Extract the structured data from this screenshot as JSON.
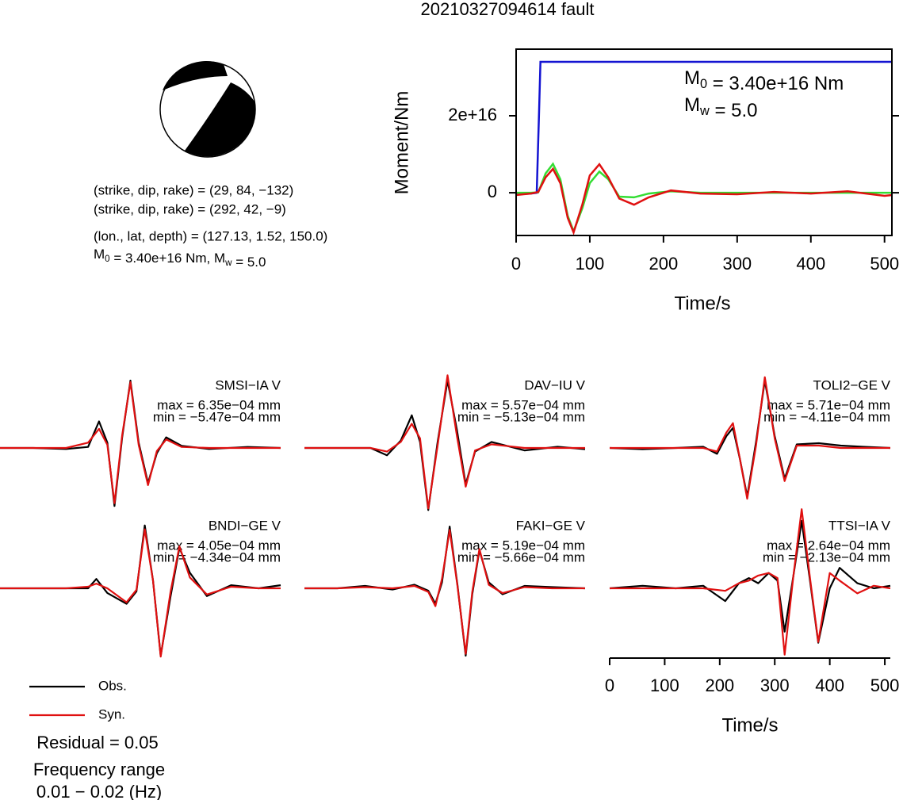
{
  "title": "20210327094614 fault",
  "mechanism": {
    "plane1": "(strike, dip, rake) = (29, 84, −132)",
    "plane2": "(strike, dip, rake) = (292, 42, −9)",
    "location": "(lon., lat, depth) = (127.13, 1.52, 150.0)",
    "moment": [
      {
        "text": "M"
      },
      {
        "text": "0",
        "sub": true
      },
      {
        "text": " = 3.40e+16 Nm, M"
      },
      {
        "text": "w",
        "sub": true
      },
      {
        "text": " = 5.0"
      }
    ]
  },
  "notes": {
    "residual": "Residual = 0.05",
    "frequency_label": "Frequency range",
    "frequency_range": "0.01 − 0.02 (Hz)"
  },
  "chart_data": [
    {
      "type": "line",
      "xlabel": "Time/s",
      "ylabel": "Moment/Nm",
      "xlim": [
        0,
        510
      ],
      "ylim": [
        -1.11e+16,
        3.73e+16
      ],
      "xticks": [
        0,
        100,
        200,
        300,
        400,
        500
      ],
      "yticks": [
        0,
        {
          "value": 2e+16,
          "label": "2e+16"
        }
      ],
      "annotation_lines": [
        [
          {
            "text": "M"
          },
          {
            "text": "0",
            "sub": true
          },
          {
            "text": " = 3.40e+16 Nm"
          }
        ],
        [
          {
            "text": "M"
          },
          {
            "text": "w",
            "sub": true
          },
          {
            "text": " = 5.0"
          }
        ]
      ],
      "series": [
        {
          "color": "#1414d2",
          "x": [
            0,
            20,
            28,
            31,
            33,
            510
          ],
          "values": [
            -400000000000000.0,
            -200000000000000.0,
            0,
            2e+16,
            3.4e+16,
            3.4e+16
          ]
        },
        {
          "color": "#33dd33",
          "x": [
            0,
            10,
            20,
            30,
            40,
            50,
            60,
            70,
            78,
            90,
            100,
            113,
            125,
            140,
            160,
            180,
            210,
            250,
            300,
            350,
            400,
            450,
            500,
            510
          ],
          "values": [
            0,
            0,
            0,
            100000000000000.0,
            5000000000000000.0,
            7500000000000000.0,
            3500000000000000.0,
            -6000000000000000.0,
            -1e+16,
            -4000000000000000.0,
            2500000000000000.0,
            5500000000000000.0,
            3500000000000000.0,
            -1000000000000000.0,
            -1200000000000000.0,
            -200000000000000.0,
            400000000000000.0,
            0,
            0,
            0,
            0,
            0,
            0,
            0
          ]
        },
        {
          "color": "#e01010",
          "x": [
            0,
            10,
            20,
            30,
            40,
            50,
            60,
            70,
            78,
            90,
            100,
            113,
            125,
            140,
            160,
            180,
            210,
            250,
            300,
            350,
            400,
            450,
            500,
            510
          ],
          "values": [
            -600000000000000.0,
            -400000000000000.0,
            -200000000000000.0,
            200000000000000.0,
            4000000000000000.0,
            6200000000000000.0,
            2500000000000000.0,
            -6500000000000000.0,
            -1.03e+16,
            -3000000000000000.0,
            4500000000000000.0,
            7400000000000000.0,
            4000000000000000.0,
            -1500000000000000.0,
            -3100000000000000.0,
            -1200000000000000.0,
            600000000000000.0,
            -200000000000000.0,
            -400000000000000.0,
            200000000000000.0,
            -200000000000000.0,
            400000000000000.0,
            -800000000000000.0,
            -600000000000000.0
          ]
        }
      ]
    },
    {
      "type": "waveforms",
      "xlabel": "Time/s",
      "xlim": [
        0,
        510
      ],
      "xticks": [
        0,
        100,
        200,
        300,
        400,
        500
      ],
      "series": [
        {
          "name": "Obs.",
          "color": "#000000"
        },
        {
          "name": "Syn.",
          "color": "#e01010"
        }
      ],
      "panels": [
        {
          "title": "SMSI−IA V",
          "max": {
            "value": 0.000635,
            "label": "max = 6.35e−04 mm"
          },
          "min": {
            "value": -0.000547,
            "label": "min = −5.47e−04 mm"
          },
          "x": [
            0,
            60,
            120,
            160,
            180,
            195,
            208,
            222,
            237,
            252,
            269,
            285,
            302,
            330,
            380,
            450,
            510
          ],
          "obs": [
            0,
            0,
            -1e-05,
            1e-05,
            0.00025,
            5e-05,
            -0.000547,
            0.0001,
            0.000635,
            5e-05,
            -0.00033,
            -5e-05,
            0.0001,
            2e-05,
            -1e-05,
            1e-05,
            0
          ],
          "syn": [
            0,
            0,
            0,
            5e-05,
            0.00018,
            3e-05,
            -0.00052,
            0.00012,
            0.00062,
            3e-05,
            -0.00035,
            -3e-05,
            8e-05,
            1e-05,
            0,
            0,
            0
          ]
        },
        {
          "title": "DAV−IU V",
          "max": {
            "value": 0.000557,
            "label": "max = 5.57e−04 mm"
          },
          "min": {
            "value": -0.000513,
            "label": "min = −5.13e−04 mm"
          },
          "x": [
            0,
            60,
            120,
            150,
            175,
            195,
            210,
            225,
            242,
            260,
            277,
            293,
            310,
            340,
            400,
            460,
            510
          ],
          "obs": [
            0,
            0,
            0,
            -6e-05,
            6e-05,
            0.00027,
            5e-05,
            -0.000513,
            5e-05,
            0.000557,
            0.00015,
            -0.0003,
            -3e-05,
            5e-05,
            -2e-05,
            1e-05,
            -1e-05
          ],
          "syn": [
            0,
            0,
            0,
            -3e-05,
            5e-05,
            0.0002,
            8e-05,
            -0.0005,
            2e-05,
            0.0006,
            0.0001,
            -0.00032,
            -2e-05,
            3e-05,
            0,
            0,
            0
          ]
        },
        {
          "title": "TOLI2−GE V",
          "max": {
            "value": 0.000571,
            "label": "max = 5.71e−04 mm"
          },
          "min": {
            "value": -0.000411,
            "label": "min = −4.11e−04 mm"
          },
          "x": [
            0,
            60,
            120,
            170,
            195,
            212,
            224,
            237,
            250,
            266,
            282,
            300,
            318,
            340,
            380,
            420,
            460,
            510
          ],
          "obs": [
            0,
            -1e-05,
            0,
            1e-05,
            -5e-05,
            0.0001,
            0.00017,
            -0.0001,
            -0.000411,
            5e-05,
            0.000571,
            0.0001,
            -0.00026,
            3e-05,
            4e-05,
            2e-05,
            1e-05,
            0
          ],
          "syn": [
            0,
            0,
            0,
            0,
            -3e-05,
            0.00013,
            0.00021,
            -0.0001,
            -0.00043,
            2e-05,
            0.0006,
            8e-05,
            -0.00028,
            2e-05,
            2e-05,
            0,
            0,
            0
          ]
        },
        {
          "title": "BNDI−GE V",
          "max": {
            "value": 0.000405,
            "label": "max = 4.05e−04 mm"
          },
          "min": {
            "value": -0.000434,
            "label": "min = −4.34e−04 mm"
          },
          "x": [
            0,
            60,
            120,
            160,
            175,
            195,
            230,
            248,
            263,
            278,
            292,
            310,
            326,
            345,
            376,
            420,
            470,
            510
          ],
          "obs": [
            0,
            0,
            0,
            0,
            6e-05,
            -3e-05,
            -0.0001,
            -2e-05,
            0.000405,
            5e-05,
            -0.000434,
            -5e-05,
            0.00026,
            0.0001,
            -5e-05,
            2e-05,
            0,
            2e-05
          ],
          "syn": [
            0,
            0,
            0,
            1e-05,
            3e-05,
            0,
            -9e-05,
            -1e-05,
            0.00038,
            5e-05,
            -0.00044,
            -2e-05,
            0.00027,
            7e-05,
            -4e-05,
            1e-05,
            0,
            0
          ]
        },
        {
          "title": "FAKI−GE V",
          "max": {
            "value": 0.000519,
            "label": "max = 5.19e−04 mm"
          },
          "min": {
            "value": -0.000566,
            "label": "min = −5.66e−04 mm"
          },
          "x": [
            0,
            60,
            110,
            160,
            200,
            225,
            238,
            250,
            264,
            278,
            293,
            305,
            318,
            335,
            360,
            400,
            450,
            510
          ],
          "obs": [
            0,
            0,
            2e-05,
            -1e-05,
            3e-05,
            -2e-05,
            -0.00013,
            5e-05,
            0.000519,
            3e-05,
            -0.000566,
            -5e-05,
            0.00032,
            5e-05,
            -5e-05,
            2e-05,
            1e-05,
            0
          ],
          "syn": [
            0,
            0,
            1e-05,
            0,
            2e-05,
            -3e-05,
            -0.00015,
            8e-05,
            0.00049,
            2e-05,
            -0.00055,
            -3e-05,
            0.00033,
            3e-05,
            -4e-05,
            1e-05,
            0,
            0
          ]
        },
        {
          "title": "TTSI−IA V",
          "max": {
            "value": 0.000264,
            "label": "max = 2.64e−04 mm"
          },
          "min": {
            "value": -0.000213,
            "label": "min = −2.13e−04 mm"
          },
          "x": [
            0,
            60,
            120,
            170,
            210,
            235,
            253,
            270,
            289,
            305,
            318,
            334,
            349,
            364,
            379,
            400,
            418,
            450,
            480,
            510
          ],
          "obs": [
            0,
            1e-05,
            0,
            1e-05,
            -5e-05,
            2e-05,
            4e-05,
            2e-05,
            6e-05,
            3e-05,
            -0.00017,
            5e-05,
            0.000264,
            3e-05,
            -0.000213,
            0,
            8e-05,
            2e-05,
            0,
            1e-05
          ],
          "syn": [
            0,
            0,
            0,
            0,
            -1e-05,
            2e-05,
            3e-05,
            5e-05,
            6e-05,
            4e-05,
            -0.00026,
            5e-05,
            0.00031,
            4e-05,
            -0.00021,
            6e-05,
            3e-05,
            -2e-05,
            1e-05,
            0
          ]
        }
      ]
    }
  ]
}
